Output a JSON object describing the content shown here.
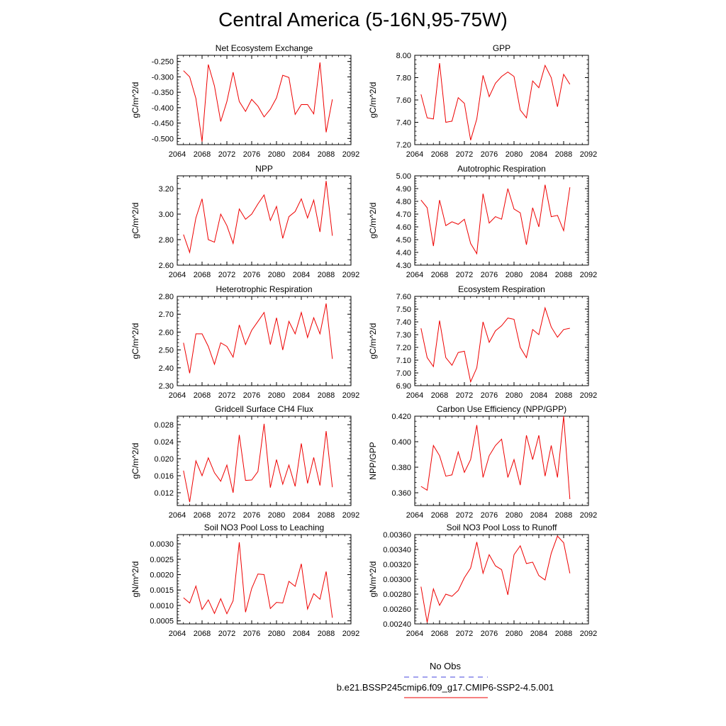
{
  "title": "Central America (5-16N,95-75W)",
  "legend": {
    "obs_label": "No Obs",
    "obs_color": "#4444dd",
    "run_label": "b.e21.BSSP245cmip6.f09_g17.CMIP6-SSP2-4.5.001",
    "run_color": "#ee0000"
  },
  "chart_data": [
    {
      "type": "line",
      "title": "Net Ecosystem Exchange",
      "ylabel": "gC/m^2/d",
      "xlim": [
        2064,
        2092
      ],
      "xticks": [
        "2064",
        "2068",
        "2072",
        "2076",
        "2080",
        "2084",
        "2088",
        "2092"
      ],
      "ylim": [
        -0.52,
        -0.23
      ],
      "yticks": [
        -0.25,
        -0.3,
        -0.35,
        -0.4,
        -0.45,
        -0.5
      ],
      "ytick_labels": [
        "-0.250",
        "-0.300",
        "-0.350",
        "-0.400",
        "-0.450",
        "-0.500"
      ],
      "x": [
        2065,
        2066,
        2067,
        2068,
        2069,
        2070,
        2071,
        2072,
        2073,
        2074,
        2075,
        2076,
        2077,
        2078,
        2079,
        2080,
        2081,
        2082,
        2083,
        2084,
        2085,
        2086,
        2087,
        2088,
        2089
      ],
      "values": [
        -0.28,
        -0.3,
        -0.37,
        -0.51,
        -0.26,
        -0.33,
        -0.445,
        -0.38,
        -0.285,
        -0.38,
        -0.412,
        -0.373,
        -0.395,
        -0.43,
        -0.405,
        -0.368,
        -0.295,
        -0.302,
        -0.422,
        -0.39,
        -0.39,
        -0.42,
        -0.253,
        -0.48,
        -0.373
      ]
    },
    {
      "type": "line",
      "title": "GPP",
      "ylabel": "gC/m^2/d",
      "xlim": [
        2064,
        2092
      ],
      "xticks": [
        "2064",
        "2068",
        "2072",
        "2076",
        "2080",
        "2084",
        "2088",
        "2092"
      ],
      "ylim": [
        7.2,
        8.0
      ],
      "yticks": [
        7.2,
        7.4,
        7.6,
        7.8,
        8.0
      ],
      "ytick_labels": [
        "7.20",
        "7.40",
        "7.60",
        "7.80",
        "8.00"
      ],
      "x": [
        2065,
        2066,
        2067,
        2068,
        2069,
        2070,
        2071,
        2072,
        2073,
        2074,
        2075,
        2076,
        2077,
        2078,
        2079,
        2080,
        2081,
        2082,
        2083,
        2084,
        2085,
        2086,
        2087,
        2088,
        2089
      ],
      "values": [
        7.65,
        7.44,
        7.43,
        7.93,
        7.4,
        7.41,
        7.62,
        7.57,
        7.24,
        7.43,
        7.82,
        7.63,
        7.75,
        7.81,
        7.85,
        7.81,
        7.51,
        7.44,
        7.77,
        7.71,
        7.91,
        7.8,
        7.54,
        7.83,
        7.74
      ]
    },
    {
      "type": "line",
      "title": "NPP",
      "ylabel": "gC/m^2/d",
      "xlim": [
        2064,
        2092
      ],
      "xticks": [
        "2064",
        "2068",
        "2072",
        "2076",
        "2080",
        "2084",
        "2088",
        "2092"
      ],
      "ylim": [
        2.6,
        3.3
      ],
      "yticks": [
        2.6,
        2.8,
        3.0,
        3.2
      ],
      "ytick_labels": [
        "2.60",
        "2.80",
        "3.00",
        "3.20"
      ],
      "x": [
        2065,
        2066,
        2067,
        2068,
        2069,
        2070,
        2071,
        2072,
        2073,
        2074,
        2075,
        2076,
        2077,
        2078,
        2079,
        2080,
        2081,
        2082,
        2083,
        2084,
        2085,
        2086,
        2087,
        2088,
        2089
      ],
      "values": [
        2.84,
        2.7,
        2.97,
        3.12,
        2.8,
        2.78,
        3.0,
        2.91,
        2.77,
        3.04,
        2.96,
        3.0,
        3.08,
        3.15,
        2.95,
        3.06,
        2.81,
        2.98,
        3.02,
        3.12,
        2.97,
        3.11,
        2.86,
        3.26,
        2.83
      ]
    },
    {
      "type": "line",
      "title": "Autotrophic Respiration",
      "ylabel": "gC/m^2/d",
      "xlim": [
        2064,
        2092
      ],
      "xticks": [
        "2064",
        "2068",
        "2072",
        "2076",
        "2080",
        "2084",
        "2088",
        "2092"
      ],
      "ylim": [
        4.3,
        5.0
      ],
      "yticks": [
        4.3,
        4.4,
        4.5,
        4.6,
        4.7,
        4.8,
        4.9,
        5.0
      ],
      "ytick_labels": [
        "4.30",
        "4.40",
        "4.50",
        "4.60",
        "4.70",
        "4.80",
        "4.90",
        "5.00"
      ],
      "x": [
        2065,
        2066,
        2067,
        2068,
        2069,
        2070,
        2071,
        2072,
        2073,
        2074,
        2075,
        2076,
        2077,
        2078,
        2079,
        2080,
        2081,
        2082,
        2083,
        2084,
        2085,
        2086,
        2087,
        2088,
        2089
      ],
      "values": [
        4.81,
        4.75,
        4.45,
        4.81,
        4.61,
        4.64,
        4.62,
        4.66,
        4.47,
        4.39,
        4.86,
        4.63,
        4.68,
        4.66,
        4.9,
        4.74,
        4.71,
        4.46,
        4.75,
        4.6,
        4.93,
        4.68,
        4.69,
        4.57,
        4.91
      ]
    },
    {
      "type": "line",
      "title": "Heterotrophic Respiration",
      "ylabel": "gC/m^2/d",
      "xlim": [
        2064,
        2092
      ],
      "xticks": [
        "2064",
        "2068",
        "2072",
        "2076",
        "2080",
        "2084",
        "2088",
        "2092"
      ],
      "ylim": [
        2.3,
        2.8
      ],
      "yticks": [
        2.3,
        2.4,
        2.5,
        2.6,
        2.7,
        2.8
      ],
      "ytick_labels": [
        "2.30",
        "2.40",
        "2.50",
        "2.60",
        "2.70",
        "2.80"
      ],
      "x": [
        2065,
        2066,
        2067,
        2068,
        2069,
        2070,
        2071,
        2072,
        2073,
        2074,
        2075,
        2076,
        2077,
        2078,
        2079,
        2080,
        2081,
        2082,
        2083,
        2084,
        2085,
        2086,
        2087,
        2088,
        2089
      ],
      "values": [
        2.54,
        2.37,
        2.59,
        2.59,
        2.52,
        2.42,
        2.54,
        2.52,
        2.46,
        2.64,
        2.53,
        2.61,
        2.66,
        2.71,
        2.53,
        2.68,
        2.5,
        2.66,
        2.59,
        2.71,
        2.57,
        2.68,
        2.59,
        2.76,
        2.45
      ]
    },
    {
      "type": "line",
      "title": "Ecosystem Respiration",
      "ylabel": "gC/m^2/d",
      "xlim": [
        2064,
        2092
      ],
      "xticks": [
        "2064",
        "2068",
        "2072",
        "2076",
        "2080",
        "2084",
        "2088",
        "2092"
      ],
      "ylim": [
        6.9,
        7.6
      ],
      "yticks": [
        6.9,
        7.0,
        7.1,
        7.2,
        7.3,
        7.4,
        7.5,
        7.6
      ],
      "ytick_labels": [
        "6.90",
        "7.00",
        "7.10",
        "7.20",
        "7.30",
        "7.40",
        "7.50",
        "7.60"
      ],
      "x": [
        2065,
        2066,
        2067,
        2068,
        2069,
        2070,
        2071,
        2072,
        2073,
        2074,
        2075,
        2076,
        2077,
        2078,
        2079,
        2080,
        2081,
        2082,
        2083,
        2084,
        2085,
        2086,
        2087,
        2088,
        2089
      ],
      "values": [
        7.35,
        7.12,
        7.05,
        7.41,
        7.12,
        7.06,
        7.16,
        7.17,
        6.93,
        7.04,
        7.4,
        7.24,
        7.33,
        7.37,
        7.43,
        7.42,
        7.2,
        7.12,
        7.34,
        7.3,
        7.51,
        7.36,
        7.28,
        7.34,
        7.35
      ]
    },
    {
      "type": "line",
      "title": "Gridcell Surface CH4 Flux",
      "ylabel": "gC/m^2/d",
      "xlim": [
        2064,
        2092
      ],
      "xticks": [
        "2064",
        "2068",
        "2072",
        "2076",
        "2080",
        "2084",
        "2088",
        "2092"
      ],
      "ylim": [
        0.009,
        0.03
      ],
      "yticks": [
        0.012,
        0.016,
        0.02,
        0.024,
        0.028
      ],
      "ytick_labels": [
        "0.012",
        "0.016",
        "0.020",
        "0.024",
        "0.028"
      ],
      "x": [
        2065,
        2066,
        2067,
        2068,
        2069,
        2070,
        2071,
        2072,
        2073,
        2074,
        2075,
        2076,
        2077,
        2078,
        2079,
        2080,
        2081,
        2082,
        2083,
        2084,
        2085,
        2086,
        2087,
        2088,
        2089
      ],
      "values": [
        0.0172,
        0.0098,
        0.0195,
        0.016,
        0.0202,
        0.0167,
        0.0147,
        0.0185,
        0.012,
        0.0256,
        0.0149,
        0.015,
        0.017,
        0.0282,
        0.0132,
        0.0198,
        0.014,
        0.0185,
        0.0135,
        0.0236,
        0.0142,
        0.0203,
        0.0137,
        0.0265,
        0.0133
      ]
    },
    {
      "type": "line",
      "title": "Carbon Use Efficiency (NPP/GPP)",
      "ylabel": "NPP/GPP",
      "xlim": [
        2064,
        2092
      ],
      "xticks": [
        "2064",
        "2068",
        "2072",
        "2076",
        "2080",
        "2084",
        "2088",
        "2092"
      ],
      "ylim": [
        0.35,
        0.42
      ],
      "yticks": [
        0.36,
        0.38,
        0.4,
        0.42
      ],
      "ytick_labels": [
        "0.360",
        "0.380",
        "0.400",
        "0.420"
      ],
      "x": [
        2065,
        2066,
        2067,
        2068,
        2069,
        2070,
        2071,
        2072,
        2073,
        2074,
        2075,
        2076,
        2077,
        2078,
        2079,
        2080,
        2081,
        2082,
        2083,
        2084,
        2085,
        2086,
        2087,
        2088,
        2089
      ],
      "values": [
        0.365,
        0.362,
        0.397,
        0.389,
        0.373,
        0.374,
        0.392,
        0.376,
        0.386,
        0.413,
        0.372,
        0.389,
        0.397,
        0.402,
        0.372,
        0.386,
        0.366,
        0.405,
        0.386,
        0.405,
        0.373,
        0.397,
        0.372,
        0.42,
        0.355
      ]
    },
    {
      "type": "line",
      "title": "Soil NO3 Pool Loss to Leaching",
      "ylabel": "gN/m^2/d",
      "xlim": [
        2064,
        2092
      ],
      "xticks": [
        "2064",
        "2068",
        "2072",
        "2076",
        "2080",
        "2084",
        "2088",
        "2092"
      ],
      "ylim": [
        0.0004,
        0.0033
      ],
      "yticks": [
        0.0005,
        0.001,
        0.0015,
        0.002,
        0.0025,
        0.003
      ],
      "ytick_labels": [
        "0.0005",
        "0.0010",
        "0.0015",
        "0.0020",
        "0.0025",
        "0.0030"
      ],
      "x": [
        2065,
        2066,
        2067,
        2068,
        2069,
        2070,
        2071,
        2072,
        2073,
        2074,
        2075,
        2076,
        2077,
        2078,
        2079,
        2080,
        2081,
        2082,
        2083,
        2084,
        2085,
        2086,
        2087,
        2088,
        2089
      ],
      "values": [
        0.00125,
        0.00108,
        0.00163,
        0.00087,
        0.00118,
        0.00074,
        0.00122,
        0.00073,
        0.00115,
        0.00305,
        0.00078,
        0.00155,
        0.00202,
        0.002,
        0.0009,
        0.0011,
        0.00108,
        0.00178,
        0.00162,
        0.00235,
        0.00088,
        0.00138,
        0.0012,
        0.0021,
        0.0006
      ]
    },
    {
      "type": "line",
      "title": "Soil NO3 Pool Loss to Runoff",
      "ylabel": "gN/m^2/d",
      "xlim": [
        2064,
        2092
      ],
      "xticks": [
        "2064",
        "2068",
        "2072",
        "2076",
        "2080",
        "2084",
        "2088",
        "2092"
      ],
      "ylim": [
        0.0024,
        0.0036
      ],
      "yticks": [
        0.0024,
        0.0026,
        0.0028,
        0.003,
        0.0032,
        0.0034,
        0.0036
      ],
      "ytick_labels": [
        "0.00240",
        "0.00260",
        "0.00280",
        "0.00300",
        "0.00320",
        "0.00340",
        "0.00360"
      ],
      "x": [
        2065,
        2066,
        2067,
        2068,
        2069,
        2070,
        2071,
        2072,
        2073,
        2074,
        2075,
        2076,
        2077,
        2078,
        2079,
        2080,
        2081,
        2082,
        2083,
        2084,
        2085,
        2086,
        2087,
        2088,
        2089
      ],
      "values": [
        0.0029,
        0.00242,
        0.00287,
        0.00265,
        0.0028,
        0.00277,
        0.00285,
        0.00302,
        0.00315,
        0.0035,
        0.00308,
        0.00333,
        0.00318,
        0.00313,
        0.00279,
        0.00333,
        0.00345,
        0.00321,
        0.00323,
        0.00305,
        0.00299,
        0.00335,
        0.00358,
        0.00349,
        0.00308
      ]
    }
  ]
}
